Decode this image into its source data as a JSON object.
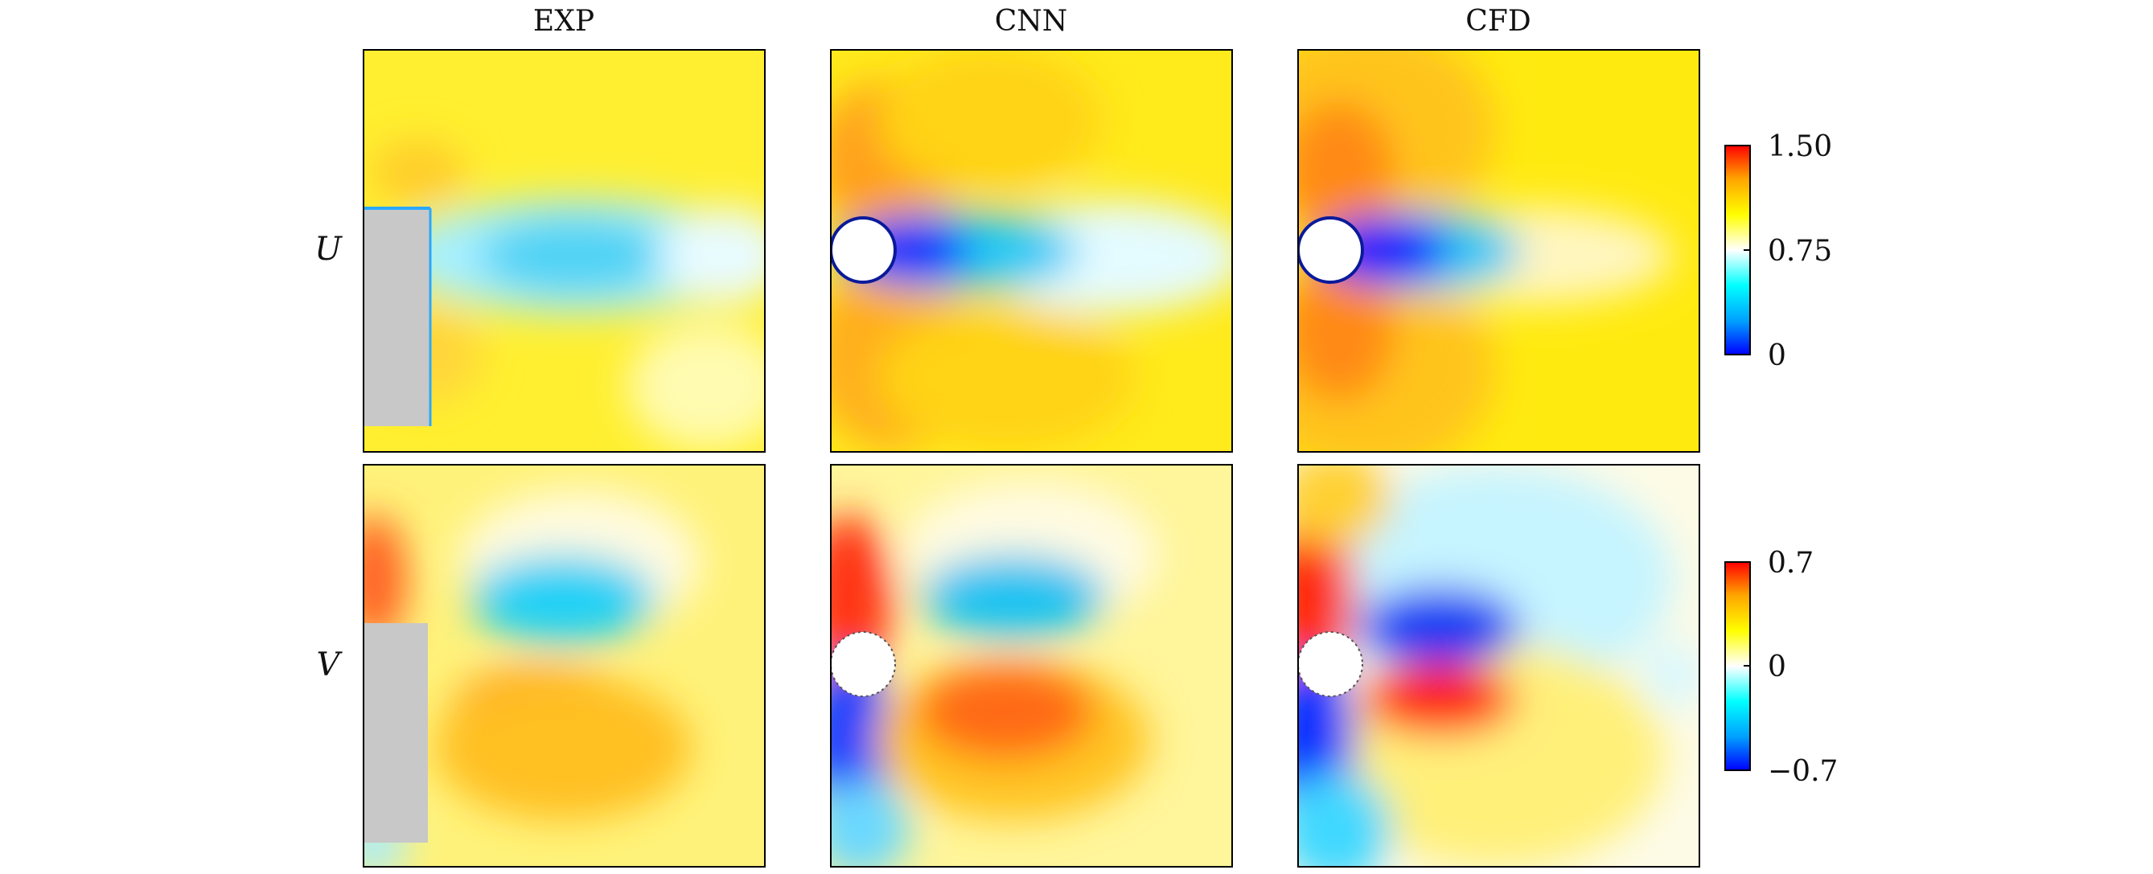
{
  "chart_data": {
    "type": "heatmap",
    "columns": [
      "EXP",
      "CNN",
      "CFD"
    ],
    "rows": [
      {
        "label": "U",
        "colorbar": {
          "min": 0,
          "max": 1.5,
          "ticks": [
            {
              "value": 1.5,
              "label": "1.50"
            },
            {
              "value": 0.75,
              "label": "0.75"
            },
            {
              "value": 0,
              "label": "0"
            }
          ]
        },
        "field_description": "streamwise velocity: low-velocity wake (about 0.2-0.6) downstream of the body, accelerated flow (about 1.1-1.3) around its top and bottom, free stream about 1.0"
      },
      {
        "label": "V",
        "colorbar": {
          "min": -0.7,
          "max": 0.7,
          "ticks": [
            {
              "value": 0.7,
              "label": "0.7"
            },
            {
              "value": 0,
              "label": "0"
            },
            {
              "value": -0.7,
              "label": "−0.7"
            }
          ]
        },
        "field_description": "transverse velocity: negative lobe above the wake axis, positive lobe below it, opposite-sign lobes upstream of the body, near zero far away"
      }
    ],
    "colormap": [
      "#0000ff",
      "#00a0ff",
      "#00ffff",
      "#ffffff",
      "#ffff00",
      "#ffa500",
      "#ff0000"
    ]
  }
}
